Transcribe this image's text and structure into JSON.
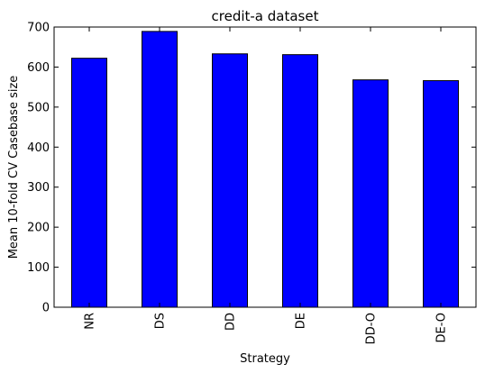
{
  "chart_data": {
    "type": "bar",
    "title": "credit-a dataset",
    "xlabel": "Strategy",
    "ylabel": "Mean 10-fold CV Casebase size",
    "categories": [
      "NR",
      "DS",
      "DD",
      "DE",
      "DD-O",
      "DE-O"
    ],
    "values": [
      622,
      689,
      633,
      631,
      568,
      566
    ],
    "ylim": [
      0,
      700
    ],
    "yticks": [
      0,
      100,
      200,
      300,
      400,
      500,
      600,
      700
    ],
    "bar_color": "#0000ff",
    "edge_color": "#000000",
    "grid": false,
    "legend": false
  }
}
